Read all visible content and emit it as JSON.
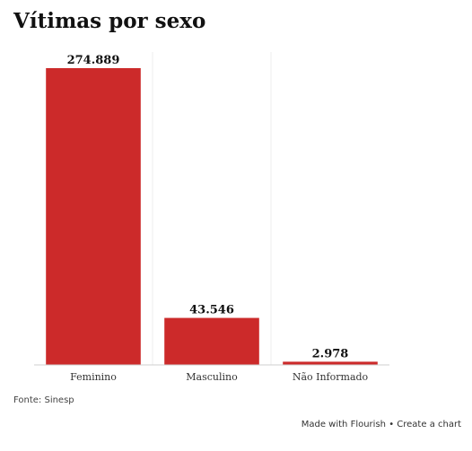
{
  "chart_data": {
    "type": "bar",
    "title": "Vítimas por sexo",
    "categories": [
      "Feminino",
      "Masculino",
      "Não Informado"
    ],
    "values": [
      274889,
      43546,
      2978
    ],
    "value_labels": [
      "274.889",
      "43.546",
      "2.978"
    ],
    "ylim": [
      0,
      280000
    ],
    "grid": true,
    "bar_color": "#cc2a2a",
    "xlabel": "",
    "ylabel": ""
  },
  "footer": {
    "source": "Fonte: Sinesp",
    "made_with": "Made with Flourish",
    "separator": "•",
    "create": "Create a chart"
  }
}
